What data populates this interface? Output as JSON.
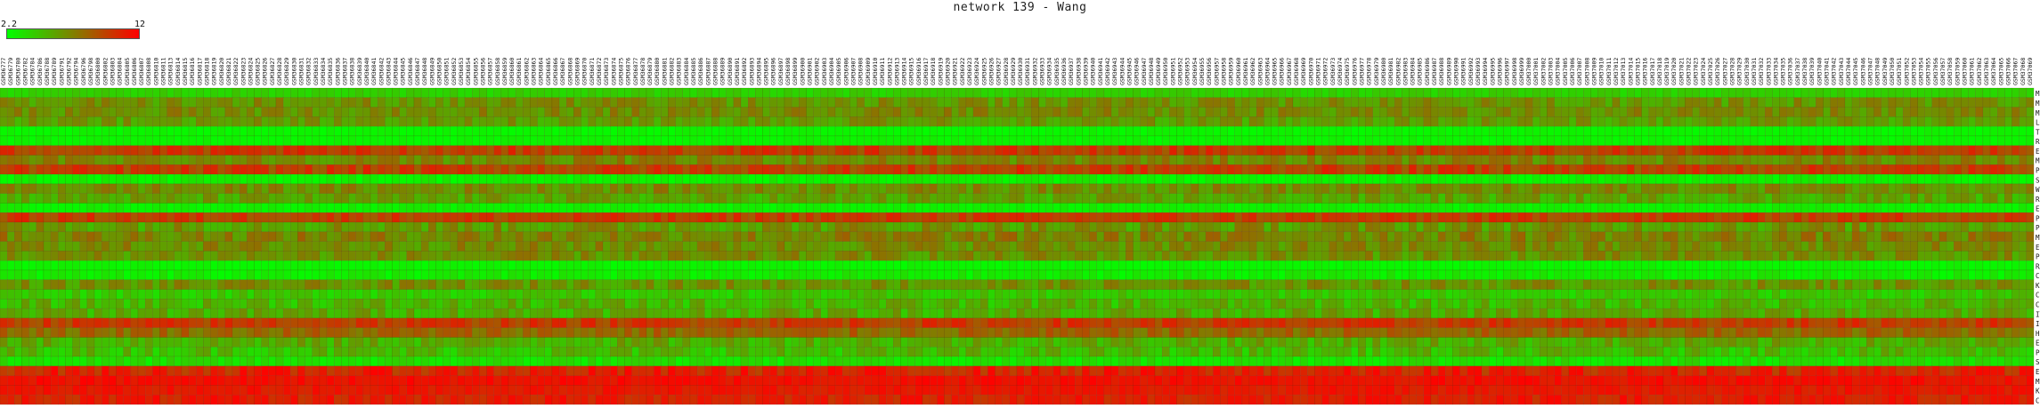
{
  "chart_data": {
    "type": "heatmap",
    "title": "network 139 - Wang",
    "color_scale": {
      "min": 2.2,
      "max": 12,
      "min_label": "2.2",
      "max_label": "12",
      "low_color": "#00ff00",
      "mid_color": "#808000",
      "high_color": "#ff0000"
    },
    "columns": [
      "GSM36777",
      "GSM36779",
      "GSM36780",
      "GSM36782",
      "GSM36784",
      "GSM36786",
      "GSM36788",
      "GSM36789",
      "GSM36791",
      "GSM36792",
      "GSM36794",
      "GSM36796",
      "GSM36798",
      "GSM36800",
      "GSM36802",
      "GSM36803",
      "GSM36804",
      "GSM36805",
      "GSM36806",
      "GSM36807",
      "GSM36808",
      "GSM36810",
      "GSM36811",
      "GSM36813",
      "GSM36814",
      "GSM36815",
      "GSM36816",
      "GSM36817",
      "GSM36818",
      "GSM36819",
      "GSM36820",
      "GSM36821",
      "GSM36822",
      "GSM36823",
      "GSM36824",
      "GSM36825",
      "GSM36826",
      "GSM36827",
      "GSM36828",
      "GSM36829",
      "GSM36830",
      "GSM36831",
      "GSM36832",
      "GSM36833",
      "GSM36834",
      "GSM36835",
      "GSM36836",
      "GSM36837",
      "GSM36838",
      "GSM36839",
      "GSM36840",
      "GSM36841",
      "GSM36842",
      "GSM36843",
      "GSM36844",
      "GSM36845",
      "GSM36846",
      "GSM36847",
      "GSM36848",
      "GSM36849",
      "GSM36850",
      "GSM36851",
      "GSM36852",
      "GSM36853",
      "GSM36854",
      "GSM36855",
      "GSM36856",
      "GSM36857",
      "GSM36858",
      "GSM36859",
      "GSM36860",
      "GSM36861",
      "GSM36862",
      "GSM36863",
      "GSM36864",
      "GSM36865",
      "GSM36866",
      "GSM36867",
      "GSM36868",
      "GSM36869",
      "GSM36870",
      "GSM36871",
      "GSM36872",
      "GSM36873",
      "GSM36874",
      "GSM36875",
      "GSM36876",
      "GSM36877",
      "GSM36878",
      "GSM36879",
      "GSM36880",
      "GSM36881",
      "GSM36882",
      "GSM36883",
      "GSM36884",
      "GSM36885",
      "GSM36886",
      "GSM36887",
      "GSM36888",
      "GSM36889",
      "GSM36890",
      "GSM36891",
      "GSM36892",
      "GSM36893",
      "GSM36894",
      "GSM36895",
      "GSM36896",
      "GSM36897",
      "GSM36898",
      "GSM36899",
      "GSM36900",
      "GSM36901",
      "GSM36902",
      "GSM36903",
      "GSM36904",
      "GSM36905",
      "GSM36906",
      "GSM36907",
      "GSM36908",
      "GSM36909",
      "GSM36910",
      "GSM36911",
      "GSM36912",
      "GSM36913",
      "GSM36914",
      "GSM36915",
      "GSM36916",
      "GSM36917",
      "GSM36918",
      "GSM36919",
      "GSM36920",
      "GSM36921",
      "GSM36922",
      "GSM36923",
      "GSM36924",
      "GSM36925",
      "GSM36926",
      "GSM36927",
      "GSM36928",
      "GSM36929",
      "GSM36930",
      "GSM36931",
      "GSM36932",
      "GSM36933",
      "GSM36934",
      "GSM36935",
      "GSM36936",
      "GSM36937",
      "GSM36938",
      "GSM36939",
      "GSM36940",
      "GSM36941",
      "GSM36942",
      "GSM36943",
      "GSM36944",
      "GSM36945",
      "GSM36946",
      "GSM36947",
      "GSM36948",
      "GSM36949",
      "GSM36950",
      "GSM36951",
      "GSM36952",
      "GSM36953",
      "GSM36954",
      "GSM36955",
      "GSM36956",
      "GSM36957",
      "GSM36958",
      "GSM36959",
      "GSM36960",
      "GSM36961",
      "GSM36962",
      "GSM36963",
      "GSM36964",
      "GSM36965",
      "GSM36966",
      "GSM36967",
      "GSM36968",
      "GSM36969",
      "GSM36970",
      "GSM36971",
      "GSM36972",
      "GSM36973",
      "GSM36974",
      "GSM36975",
      "GSM36976",
      "GSM36977",
      "GSM36978",
      "GSM36979",
      "GSM36980",
      "GSM36981",
      "GSM36982",
      "GSM36983",
      "GSM36984",
      "GSM36985",
      "GSM36986",
      "GSM36987",
      "GSM36988",
      "GSM36989",
      "GSM36990",
      "GSM36991",
      "GSM36992",
      "GSM36993",
      "GSM36994",
      "GSM36995",
      "GSM36996",
      "GSM36997",
      "GSM36998",
      "GSM36999",
      "GSM37000",
      "GSM37001",
      "GSM37002",
      "GSM37003",
      "GSM37004",
      "GSM37005",
      "GSM37006",
      "GSM37007",
      "GSM37008",
      "GSM37009",
      "GSM37010",
      "GSM37011",
      "GSM37012",
      "GSM37013",
      "GSM37014",
      "GSM37015",
      "GSM37016",
      "GSM37017",
      "GSM37018",
      "GSM37019",
      "GSM37020",
      "GSM37021",
      "GSM37022",
      "GSM37023",
      "GSM37024",
      "GSM37025",
      "GSM37026",
      "GSM37027",
      "GSM37028",
      "GSM37029",
      "GSM37030",
      "GSM37031",
      "GSM37032",
      "GSM37033",
      "GSM37034",
      "GSM37035",
      "GSM37036",
      "GSM37037",
      "GSM37038",
      "GSM37039",
      "GSM37040",
      "GSM37041",
      "GSM37042",
      "GSM37043",
      "GSM37044",
      "GSM37045",
      "GSM37046",
      "GSM37047",
      "GSM37048",
      "GSM37049",
      "GSM37050",
      "GSM37051",
      "GSM37052",
      "GSM37053",
      "GSM37054",
      "GSM37055",
      "GSM37056",
      "GSM37057",
      "GSM37058",
      "GSM37059",
      "GSM37060",
      "GSM37061",
      "GSM37062",
      "GSM37063",
      "GSM37064",
      "GSM37065",
      "GSM37066",
      "GSM37067",
      "GSM37068",
      "GSM37069"
    ],
    "rows": [
      "MCM10",
      "MCM6",
      "MUT",
      "LOXC1",
      "TNF1",
      "RIF1",
      "ERBB2",
      "MCM7",
      "PLAT",
      "SERPINB2",
      "WEE1",
      "RB1",
      "EIF2AK2",
      "PCNA",
      "PLAU",
      "MYC",
      "ESD",
      "PDGFRB",
      "RASGRF1",
      "CDC6",
      "KRAS",
      "CDK1",
      "CCNH1",
      "ITGB3BP",
      "IGFBP5",
      "HSPB8",
      "EIF2S1",
      "PIK3C2B",
      "SERPINE1",
      "ESR1",
      "MSMB1",
      "KRT18",
      "CDKN3"
    ],
    "row_mean": [
      4.0,
      6.3,
      6.6,
      6.0,
      2.6,
      2.6,
      9.6,
      6.8,
      9.5,
      2.8,
      6.6,
      5.6,
      2.8,
      9.6,
      6.2,
      7.0,
      6.6,
      6.4,
      2.6,
      2.9,
      6.3,
      4.3,
      5.0,
      5.4,
      9.7,
      8.0,
      5.4,
      4.8,
      3.4,
      10.6,
      11.4,
      11.1,
      10.8
    ],
    "row_spread": [
      0.5,
      1.3,
      1.2,
      1.2,
      0.3,
      0.3,
      1.2,
      1.3,
      1.3,
      0.6,
      1.3,
      1.3,
      0.4,
      1.2,
      1.6,
      1.4,
      1.3,
      1.3,
      0.3,
      0.6,
      1.3,
      0.9,
      1.3,
      1.3,
      1.2,
      1.2,
      1.3,
      1.3,
      0.8,
      1.3,
      0.6,
      0.6,
      1.0
    ]
  }
}
